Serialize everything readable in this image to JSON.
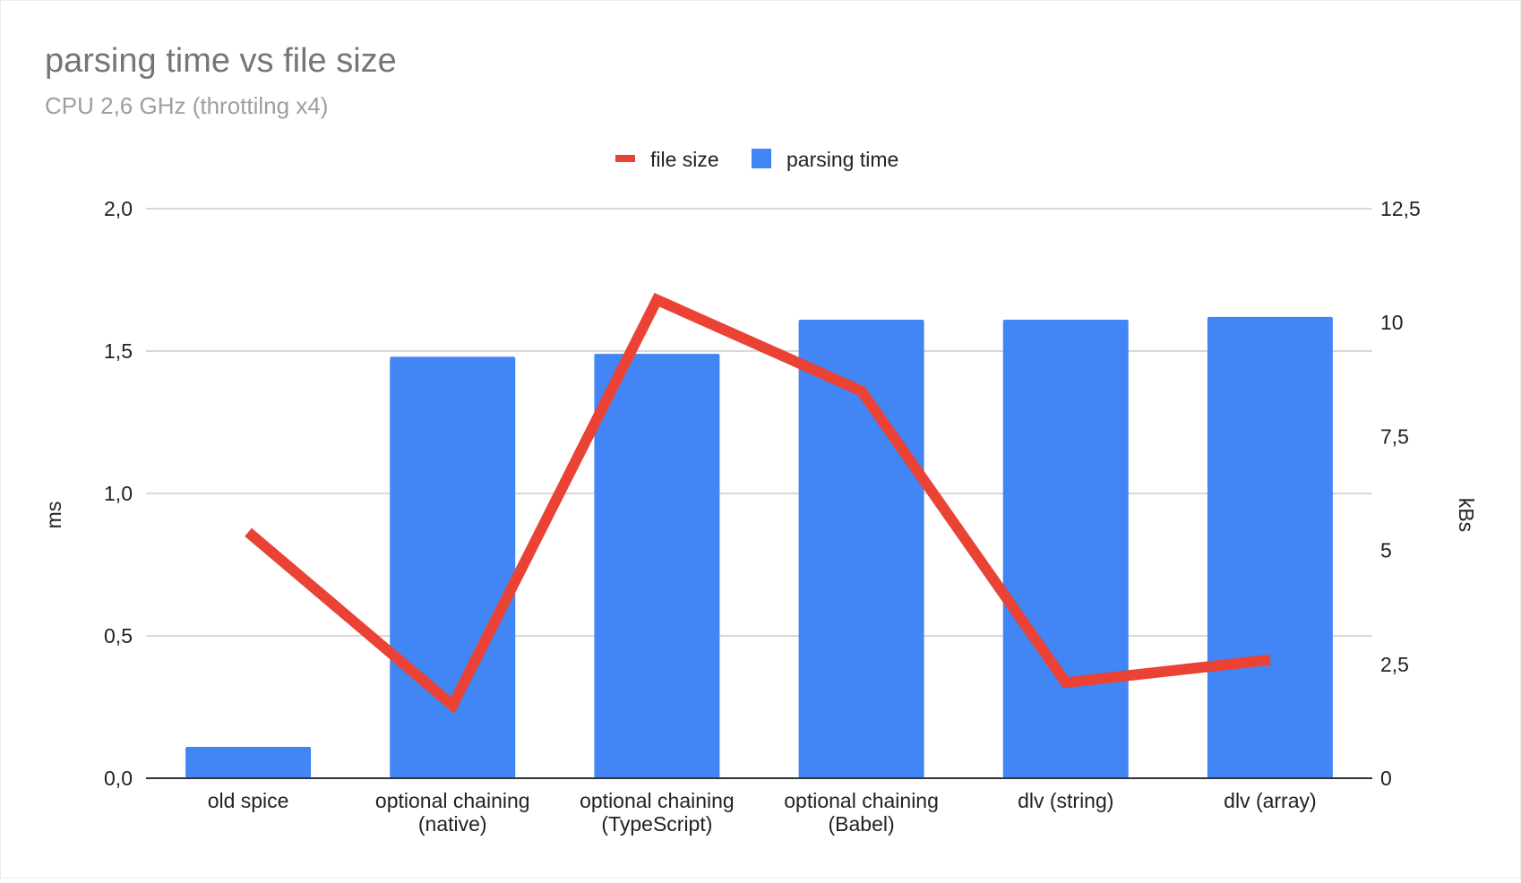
{
  "chart_data": {
    "type": "bar",
    "title": "parsing time vs file size",
    "subtitle": "CPU 2,6 GHz (throttilng x4)",
    "legend_position": "top",
    "grid": true,
    "categories": [
      [
        "old spice"
      ],
      [
        "optional chaining",
        "(native)"
      ],
      [
        "optional chaining",
        "(TypeScript)"
      ],
      [
        "optional chaining",
        "(Babel)"
      ],
      [
        "dlv (string)"
      ],
      [
        "dlv (array)"
      ]
    ],
    "y_left": {
      "label": "ms",
      "range": [
        0,
        2
      ],
      "ticks": [
        0,
        0.5,
        1,
        1.5,
        2
      ],
      "tick_labels": [
        "0,0",
        "0,5",
        "1,0",
        "1,5",
        "2,0"
      ]
    },
    "y_right": {
      "label": "kBs",
      "range": [
        0,
        12.5
      ],
      "ticks": [
        0,
        2.5,
        5,
        7.5,
        10,
        12.5
      ],
      "tick_labels": [
        "0",
        "2,5",
        "5",
        "7,5",
        "10",
        "12,5"
      ]
    },
    "series": [
      {
        "name": "parsing time",
        "type": "bar",
        "axis": "left",
        "color": "#4285f4",
        "values": [
          0.11,
          1.48,
          1.49,
          1.61,
          1.61,
          1.62
        ]
      },
      {
        "name": "file size",
        "type": "line",
        "axis": "right",
        "color": "#ea4335",
        "values": [
          5.4,
          1.6,
          10.5,
          8.5,
          2.1,
          2.6
        ]
      }
    ]
  }
}
